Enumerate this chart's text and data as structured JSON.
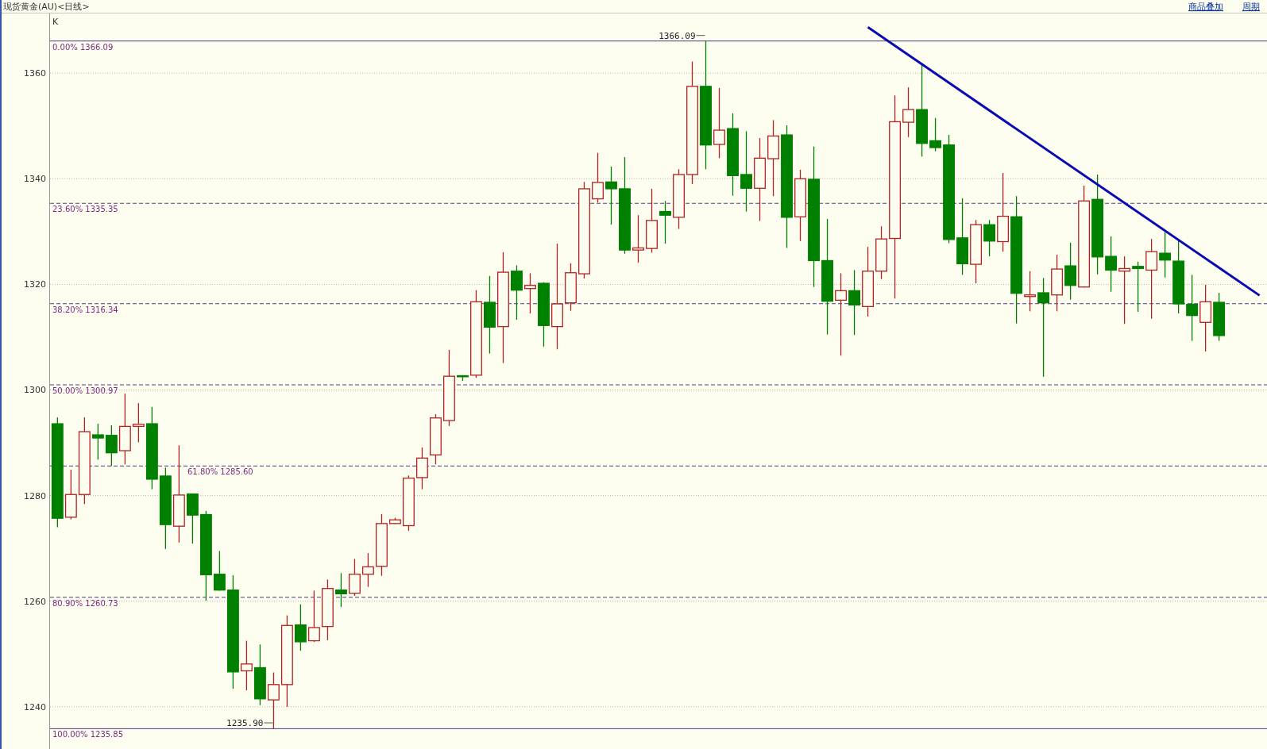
{
  "chart_data": {
    "type": "candlestick",
    "title": "现货黄金(AU)<日线>",
    "annotations": [
      "K",
      "商品叠加",
      "周期",
      {
        "text": "1366.09",
        "y": 1366.09
      },
      {
        "text": "1235.90",
        "y": 1235.9
      }
    ],
    "categories": [
      null,
      null,
      null,
      null,
      null,
      null,
      null,
      null,
      null,
      null,
      null,
      null,
      null,
      null,
      null,
      null,
      null,
      null,
      null,
      null,
      null,
      null,
      null,
      null,
      null,
      null,
      null,
      null,
      null,
      null,
      null,
      null,
      null,
      null,
      null,
      null,
      null,
      null,
      null,
      null,
      null,
      null,
      null,
      null,
      null,
      null,
      null,
      null,
      null,
      null,
      null,
      null,
      null,
      null,
      null,
      null,
      null,
      null,
      null,
      null,
      null,
      null,
      null,
      null,
      null,
      null,
      null,
      null,
      null,
      null,
      null,
      null,
      null,
      null,
      null,
      null,
      null,
      null,
      null,
      null,
      null,
      null,
      null,
      null,
      null,
      null,
      null,
      null,
      null,
      null
    ],
    "ohlc": [
      [
        1293.6,
        1294.8,
        1274.0,
        1275.7
      ],
      [
        1275.9,
        1284.9,
        1275.5,
        1280.2
      ],
      [
        1280.2,
        1294.8,
        1278.4,
        1292.1
      ],
      [
        1291.5,
        1293.6,
        1286.8,
        1290.9
      ],
      [
        1291.4,
        1293.3,
        1285.6,
        1288.1
      ],
      [
        1288.5,
        1299.3,
        1285.9,
        1293.1
      ],
      [
        1293.1,
        1297.5,
        1290.1,
        1293.5
      ],
      [
        1293.6,
        1296.8,
        1281.2,
        1283.1
      ],
      [
        1283.7,
        1285.3,
        1269.9,
        1274.5
      ],
      [
        1274.2,
        1289.5,
        1271.1,
        1280.1
      ],
      [
        1280.3,
        1280.3,
        1270.9,
        1276.3
      ],
      [
        1276.4,
        1277.1,
        1260.1,
        1265.0
      ],
      [
        1265.1,
        1269.5,
        1262.0,
        1262.1
      ],
      [
        1262.1,
        1264.9,
        1243.4,
        1246.6
      ],
      [
        1246.8,
        1252.5,
        1243.1,
        1248.1
      ],
      [
        1247.4,
        1251.8,
        1240.3,
        1241.5
      ],
      [
        1241.3,
        1246.5,
        1235.9,
        1244.2
      ],
      [
        1244.2,
        1257.3,
        1240.0,
        1255.4
      ],
      [
        1255.5,
        1259.4,
        1250.6,
        1252.3
      ],
      [
        1252.5,
        1262.0,
        1252.3,
        1255.0
      ],
      [
        1255.2,
        1264.1,
        1252.6,
        1262.4
      ],
      [
        1262.1,
        1265.3,
        1258.9,
        1261.4
      ],
      [
        1261.5,
        1268.0,
        1261.0,
        1265.1
      ],
      [
        1265.1,
        1269.1,
        1262.7,
        1266.5
      ],
      [
        1266.6,
        1276.5,
        1264.8,
        1274.7
      ],
      [
        1274.7,
        1275.8,
        1274.6,
        1275.4
      ],
      [
        1274.3,
        1283.8,
        1273.3,
        1283.3
      ],
      [
        1283.4,
        1289.1,
        1281.2,
        1287.1
      ],
      [
        1287.7,
        1295.4,
        1285.9,
        1294.7
      ],
      [
        1294.2,
        1307.6,
        1293.2,
        1302.6
      ],
      [
        1302.7,
        1302.8,
        1301.7,
        1302.5
      ],
      [
        1302.8,
        1318.9,
        1302.3,
        1316.7
      ],
      [
        1316.6,
        1321.6,
        1306.9,
        1311.9
      ],
      [
        1312.0,
        1326.1,
        1305.1,
        1322.3
      ],
      [
        1322.5,
        1323.6,
        1313.3,
        1318.9
      ],
      [
        1319.2,
        1322.1,
        1314.5,
        1319.8
      ],
      [
        1320.2,
        1320.4,
        1308.2,
        1312.2
      ],
      [
        1312.0,
        1327.7,
        1307.7,
        1316.3
      ],
      [
        1316.5,
        1324.0,
        1315.0,
        1322.2
      ],
      [
        1322.0,
        1339.4,
        1321.1,
        1338.1
      ],
      [
        1336.2,
        1344.9,
        1335.5,
        1339.3
      ],
      [
        1339.4,
        1342.3,
        1331.3,
        1338.1
      ],
      [
        1338.1,
        1344.1,
        1325.8,
        1326.5
      ],
      [
        1326.5,
        1333.1,
        1324.1,
        1326.9
      ],
      [
        1326.8,
        1338.1,
        1326.0,
        1332.1
      ],
      [
        1333.8,
        1335.8,
        1327.7,
        1333.1
      ],
      [
        1332.7,
        1341.8,
        1330.5,
        1340.8
      ],
      [
        1340.8,
        1362.2,
        1339.0,
        1357.5
      ],
      [
        1357.5,
        1366.09,
        1341.8,
        1346.4
      ],
      [
        1346.5,
        1357.2,
        1343.9,
        1349.2
      ],
      [
        1349.5,
        1352.4,
        1336.8,
        1340.6
      ],
      [
        1340.8,
        1349.0,
        1333.8,
        1338.2
      ],
      [
        1338.2,
        1347.7,
        1332.0,
        1343.9
      ],
      [
        1343.8,
        1351.1,
        1336.7,
        1348.1
      ],
      [
        1348.3,
        1350.1,
        1326.9,
        1332.7
      ],
      [
        1332.8,
        1341.7,
        1328.2,
        1340.0
      ],
      [
        1339.9,
        1346.1,
        1319.5,
        1324.5
      ],
      [
        1324.5,
        1332.4,
        1310.5,
        1316.8
      ],
      [
        1317.0,
        1322.1,
        1306.5,
        1318.8
      ],
      [
        1318.8,
        1322.7,
        1310.4,
        1316.1
      ],
      [
        1315.8,
        1327.1,
        1313.9,
        1322.5
      ],
      [
        1322.5,
        1331.0,
        1321.0,
        1328.6
      ],
      [
        1328.7,
        1355.8,
        1317.3,
        1350.8
      ],
      [
        1350.7,
        1357.3,
        1347.9,
        1353.1
      ],
      [
        1353.1,
        1361.8,
        1344.2,
        1346.7
      ],
      [
        1347.2,
        1351.5,
        1345.2,
        1345.9
      ],
      [
        1346.4,
        1348.3,
        1327.8,
        1328.5
      ],
      [
        1328.8,
        1336.3,
        1321.8,
        1323.9
      ],
      [
        1323.8,
        1332.2,
        1320.2,
        1331.3
      ],
      [
        1331.3,
        1332.2,
        1325.3,
        1328.2
      ],
      [
        1328.1,
        1341.1,
        1326.2,
        1332.9
      ],
      [
        1332.8,
        1336.7,
        1312.6,
        1318.3
      ],
      [
        1317.7,
        1322.5,
        1314.9,
        1318.0
      ],
      [
        1318.4,
        1321.2,
        1302.5,
        1316.5
      ],
      [
        1318.0,
        1325.6,
        1314.9,
        1322.9
      ],
      [
        1323.5,
        1327.9,
        1317.1,
        1319.8
      ],
      [
        1319.5,
        1338.7,
        1319.4,
        1335.8
      ],
      [
        1336.1,
        1340.8,
        1321.9,
        1325.2
      ],
      [
        1325.3,
        1329.1,
        1318.6,
        1322.7
      ],
      [
        1322.5,
        1325.3,
        1312.5,
        1323.0
      ],
      [
        1323.4,
        1324.3,
        1314.8,
        1323.0
      ],
      [
        1322.7,
        1328.6,
        1313.5,
        1326.2
      ],
      [
        1325.9,
        1329.9,
        1321.3,
        1324.6
      ],
      [
        1324.4,
        1328.4,
        1314.5,
        1316.3
      ],
      [
        1316.2,
        1321.8,
        1309.3,
        1314.1
      ],
      [
        1312.8,
        1319.9,
        1307.3,
        1316.7
      ],
      [
        1316.6,
        1318.4,
        1309.3,
        1310.3
      ],
      null,
      null,
      null
    ],
    "colors": [
      "#008000",
      "#b22222",
      "#b22222",
      "#008000",
      "#008000",
      "#b22222",
      "#b22222",
      "#008000",
      "#008000",
      "#b22222",
      "#008000",
      "#008000",
      "#008000",
      "#008000",
      "#b22222",
      "#008000",
      "#b22222",
      "#b22222",
      "#008000",
      "#b22222",
      "#b22222",
      "#008000",
      "#b22222",
      "#b22222",
      "#b22222",
      "#b22222",
      "#b22222",
      "#b22222",
      "#b22222",
      "#b22222",
      "#008000",
      "#b22222",
      "#008000",
      "#b22222",
      "#008000",
      "#b22222",
      "#008000",
      "#b22222",
      "#b22222",
      "#b22222",
      "#b22222",
      "#008000",
      "#008000",
      "#b22222",
      "#b22222",
      "#008000",
      "#b22222",
      "#b22222",
      "#008000",
      "#b22222",
      "#008000",
      "#008000",
      "#b22222",
      "#b22222",
      "#008000",
      "#b22222",
      "#008000",
      "#008000",
      "#b22222",
      "#008000",
      "#b22222",
      "#b22222",
      "#b22222",
      "#b22222",
      "#008000",
      "#008000",
      "#008000",
      "#008000",
      "#b22222",
      "#008000",
      "#b22222",
      "#008000",
      "#b22222",
      "#008000",
      "#b22222",
      "#008000",
      "#b22222",
      "#008000",
      "#008000",
      "#b22222",
      "#008000",
      "#b22222",
      "#008000",
      "#008000",
      "#008000",
      "#b22222",
      "#008000",
      null,
      null,
      null
    ],
    "series": [
      {
        "type": "line",
        "color": "#0a0ab4",
        "values": [
          null,
          null,
          null,
          null,
          null,
          null,
          null,
          null,
          null,
          null,
          null,
          null,
          null,
          null,
          null,
          null,
          null,
          null,
          null,
          null,
          null,
          null,
          null,
          null,
          null,
          null,
          null,
          null,
          null,
          null,
          null,
          null,
          null,
          null,
          null,
          null,
          null,
          null,
          null,
          null,
          null,
          null,
          null,
          null,
          null,
          null,
          null,
          null,
          null,
          null,
          null,
          null,
          null,
          null,
          null,
          null,
          null,
          null,
          null,
          null,
          1368.7,
          null,
          null,
          null,
          null,
          null,
          null,
          null,
          null,
          null,
          null,
          null,
          null,
          null,
          null,
          null,
          null,
          null,
          null,
          null,
          null,
          null,
          null,
          null,
          null,
          null,
          null,
          null,
          null,
          1317.9
        ]
      }
    ],
    "ylim": [
      1232,
      1371
    ],
    "yticks": [
      1240,
      1260,
      1280,
      1300,
      1320,
      1340,
      1360
    ],
    "grid": "y",
    "tick_labels": "y",
    "ref_lines": [
      {
        "axis": "y",
        "value": 1366.09,
        "label": "0.00% 1366.09",
        "color": "#4b3b7f",
        "line_style": "solid"
      },
      {
        "axis": "y",
        "value": 1335.35,
        "label": "23.60% 1335.35",
        "color": "#4b3b7f",
        "line_style": "dashed"
      },
      {
        "axis": "y",
        "value": 1316.34,
        "label": "38.20% 1316.34",
        "color": "#4b3b7f",
        "line_style": "dashed"
      },
      {
        "axis": "y",
        "value": 1300.97,
        "label": "50.00% 1300.97",
        "color": "#4b3b7f",
        "line_style": "dashed"
      },
      {
        "axis": "y",
        "value": 1285.6,
        "label": "61.80% 1285.60",
        "color": "#4b3b7f",
        "line_style": "dashed"
      },
      {
        "axis": "y",
        "value": 1260.73,
        "label": "80.90% 1260.73",
        "color": "#4b3b7f",
        "line_style": "dashed"
      },
      {
        "axis": "y",
        "value": 1235.85,
        "label": "100.00% 1235.85",
        "color": "#4b3b7f",
        "line_style": "solid"
      }
    ]
  }
}
